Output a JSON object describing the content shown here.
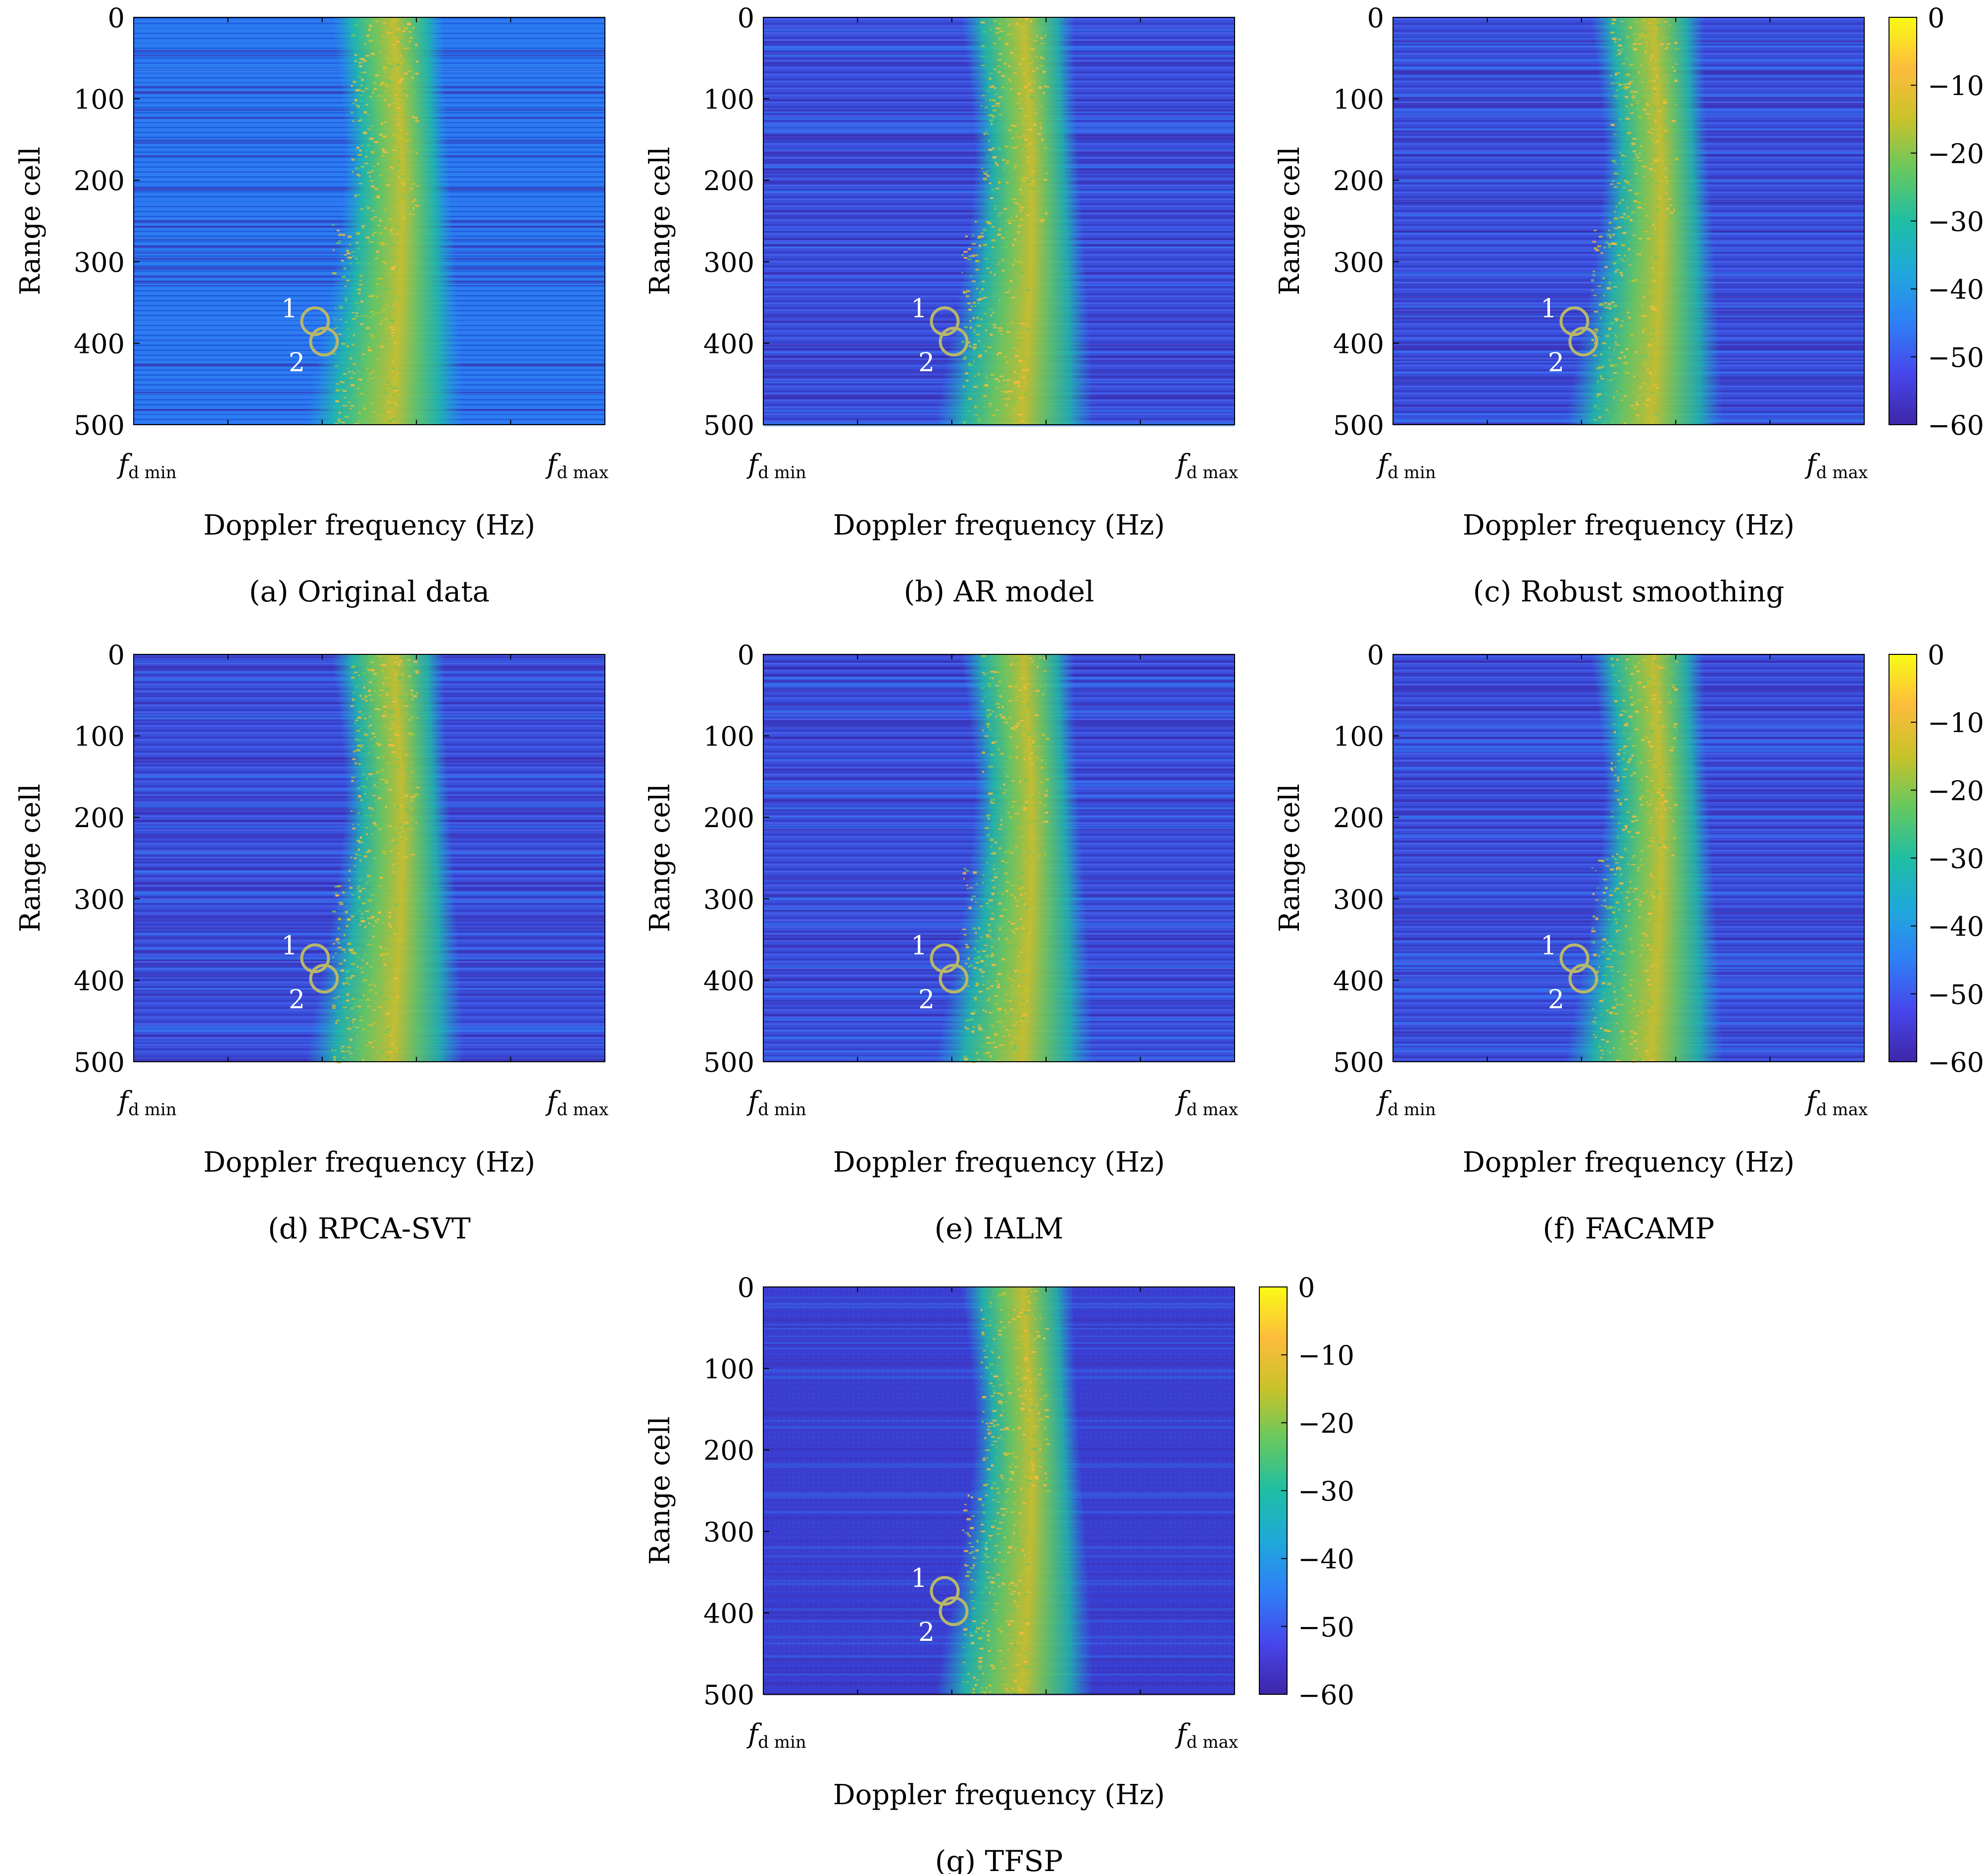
{
  "figure": {
    "colorbar": {
      "ticks": [
        "0",
        "−10",
        "−20",
        "−30",
        "−40",
        "−50",
        "−60"
      ],
      "range": [
        -60,
        0
      ]
    },
    "colormap": [
      "#3e26a8",
      "#4746eb",
      "#2f7ff5",
      "#1fa8db",
      "#1fbea3",
      "#66c860",
      "#c9c22a",
      "#fdbc3c",
      "#f9fb15"
    ]
  },
  "chart_data": [
    {
      "type": "heatmap",
      "panel": "a",
      "caption": "(a) Original data",
      "xlabel": "Doppler frequency (Hz)",
      "ylabel": "Range cell",
      "xticks": [
        "fd min",
        "fd max"
      ],
      "yticks": [
        0,
        100,
        200,
        300,
        400,
        500
      ],
      "ylim": [
        0,
        500
      ],
      "colorbar_range": [
        -60,
        0
      ],
      "markers": [
        {
          "label": "1",
          "range_cell": 373
        },
        {
          "label": "2",
          "range_cell": 398
        }
      ]
    },
    {
      "type": "heatmap",
      "panel": "b",
      "caption": "(b) AR model",
      "xlabel": "Doppler frequency (Hz)",
      "ylabel": "Range cell",
      "xticks": [
        "fd min",
        "fd max"
      ],
      "yticks": [
        0,
        100,
        200,
        300,
        400,
        500
      ],
      "ylim": [
        0,
        500
      ],
      "colorbar_range": [
        -60,
        0
      ],
      "markers": [
        {
          "label": "1",
          "range_cell": 373
        },
        {
          "label": "2",
          "range_cell": 398
        }
      ]
    },
    {
      "type": "heatmap",
      "panel": "c",
      "caption": "(c) Robust smoothing",
      "xlabel": "Doppler frequency (Hz)",
      "ylabel": "Range cell",
      "xticks": [
        "fd min",
        "fd max"
      ],
      "yticks": [
        0,
        100,
        200,
        300,
        400,
        500
      ],
      "ylim": [
        0,
        500
      ],
      "colorbar_range": [
        -60,
        0
      ],
      "markers": [
        {
          "label": "1",
          "range_cell": 373
        },
        {
          "label": "2",
          "range_cell": 398
        }
      ]
    },
    {
      "type": "heatmap",
      "panel": "d",
      "caption": "(d) RPCA-SVT",
      "xlabel": "Doppler frequency (Hz)",
      "ylabel": "Range cell",
      "xticks": [
        "fd min",
        "fd max"
      ],
      "yticks": [
        0,
        100,
        200,
        300,
        400,
        500
      ],
      "ylim": [
        0,
        500
      ],
      "colorbar_range": [
        -60,
        0
      ],
      "markers": [
        {
          "label": "1",
          "range_cell": 373
        },
        {
          "label": "2",
          "range_cell": 398
        }
      ]
    },
    {
      "type": "heatmap",
      "panel": "e",
      "caption": "(e) IALM",
      "xlabel": "Doppler frequency (Hz)",
      "ylabel": "Range cell",
      "xticks": [
        "fd min",
        "fd max"
      ],
      "yticks": [
        0,
        100,
        200,
        300,
        400,
        500
      ],
      "ylim": [
        0,
        500
      ],
      "colorbar_range": [
        -60,
        0
      ],
      "markers": [
        {
          "label": "1",
          "range_cell": 373
        },
        {
          "label": "2",
          "range_cell": 398
        }
      ]
    },
    {
      "type": "heatmap",
      "panel": "f",
      "caption": "(f) FACAMP",
      "xlabel": "Doppler frequency (Hz)",
      "ylabel": "Range cell",
      "xticks": [
        "fd min",
        "fd max"
      ],
      "yticks": [
        0,
        100,
        200,
        300,
        400,
        500
      ],
      "ylim": [
        0,
        500
      ],
      "colorbar_range": [
        -60,
        0
      ],
      "markers": [
        {
          "label": "1",
          "range_cell": 373
        },
        {
          "label": "2",
          "range_cell": 398
        }
      ]
    },
    {
      "type": "heatmap",
      "panel": "g",
      "caption": "(g) TFSP",
      "xlabel": "Doppler frequency (Hz)",
      "ylabel": "Range cell",
      "xticks": [
        "fd min",
        "fd max"
      ],
      "yticks": [
        0,
        100,
        200,
        300,
        400,
        500
      ],
      "ylim": [
        0,
        500
      ],
      "colorbar_range": [
        -60,
        0
      ],
      "markers": [
        {
          "label": "1",
          "range_cell": 373
        },
        {
          "label": "2",
          "range_cell": 398
        }
      ]
    }
  ]
}
